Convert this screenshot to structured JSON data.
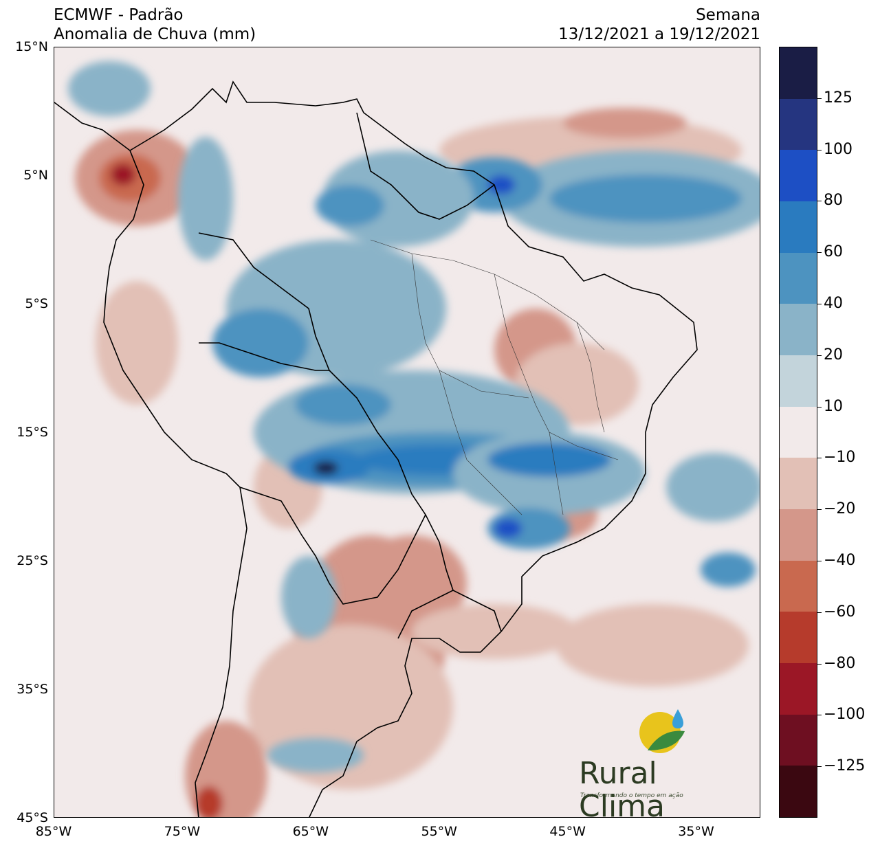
{
  "header": {
    "model": "ECMWF - Padrão",
    "variable": "Anomalia de Chuva (mm)",
    "period_label": "Semana",
    "period_dates": "13/12/2021 a 19/12/2021"
  },
  "map": {
    "extent": {
      "lon_min": -85,
      "lon_max": -30,
      "lat_min": -45,
      "lat_max": 15
    },
    "lat_ticks": [
      {
        "value": 15,
        "label": "15°N"
      },
      {
        "value": 5,
        "label": "5°N"
      },
      {
        "value": -5,
        "label": "5°S"
      },
      {
        "value": -15,
        "label": "15°S"
      },
      {
        "value": -25,
        "label": "25°S"
      },
      {
        "value": -35,
        "label": "35°S"
      },
      {
        "value": -45,
        "label": "45°S"
      }
    ],
    "lon_ticks": [
      {
        "value": -85,
        "label": "85°W"
      },
      {
        "value": -75,
        "label": "75°W"
      },
      {
        "value": -65,
        "label": "65°W"
      },
      {
        "value": -55,
        "label": "55°W"
      },
      {
        "value": -45,
        "label": "45°W"
      },
      {
        "value": -35,
        "label": "35°W"
      }
    ]
  },
  "colorbar": {
    "colors_top_to_bottom": [
      "#1a1d45",
      "#253580",
      "#1d4fc4",
      "#2a7bbf",
      "#4d93c0",
      "#8ab3c8",
      "#c3d4db",
      "#f2eaea",
      "#e2c0b6",
      "#d4978a",
      "#c9694f",
      "#b63b2c",
      "#9b1726",
      "#6e0f21",
      "#3b0811"
    ],
    "labels": [
      "125",
      "100",
      "80",
      "60",
      "40",
      "20",
      "10",
      "−10",
      "−20",
      "−40",
      "−60",
      "−80",
      "−100",
      "−125"
    ]
  },
  "logo": {
    "brand": "Rural Clima",
    "tagline": "Transformando o tempo em ação",
    "colors": {
      "sun": "#e8c41c",
      "leaf": "#3a8a3e",
      "drop": "#3a9fd8",
      "text": "#2c3b22"
    }
  }
}
